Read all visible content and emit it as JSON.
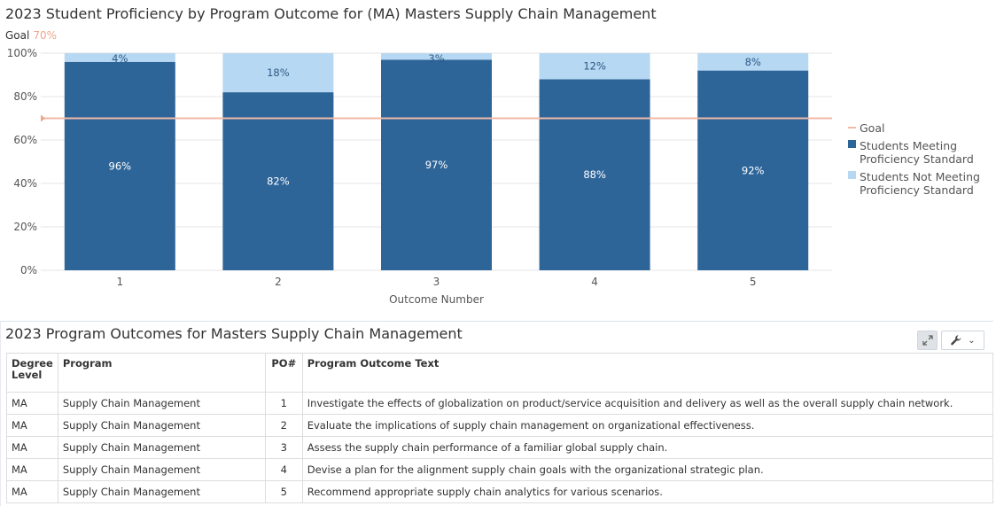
{
  "chart_data": {
    "type": "bar",
    "stacked": true,
    "title": "2023 Student Proficiency by Program Outcome for (MA) Masters Supply Chain Management",
    "goal": {
      "label": "Goal",
      "value_label": "70%",
      "value": 70,
      "color": "#f0b9a8"
    },
    "categories": [
      "1",
      "2",
      "3",
      "4",
      "5"
    ],
    "series": [
      {
        "name": "Students Meeting Proficiency Standard",
        "values": [
          96,
          82,
          97,
          88,
          92
        ],
        "labels": [
          "96%",
          "82%",
          "97%",
          "88%",
          "92%"
        ],
        "color": "#2e6599"
      },
      {
        "name": "Students Not Meeting Proficiency Standard",
        "values": [
          4,
          18,
          3,
          12,
          8
        ],
        "labels": [
          "4%",
          "18%",
          "3%",
          "12%",
          "8%"
        ],
        "color": "#b6d8f2"
      }
    ],
    "xlabel": "Outcome Number",
    "ylabel": "",
    "ylim": [
      0,
      100
    ],
    "yticks": [
      "0%",
      "20%",
      "40%",
      "60%",
      "80%",
      "100%"
    ],
    "legend": {
      "position": "right",
      "entries": [
        {
          "lines": [
            "Goal"
          ],
          "kind": "line",
          "color": "#f0b9a8"
        },
        {
          "lines": [
            "Students Meeting",
            "Proficiency Standard"
          ],
          "kind": "box",
          "color": "#2e6599"
        },
        {
          "lines": [
            "Students Not Meeting",
            "Proficiency Standard"
          ],
          "kind": "box",
          "color": "#b6d8f2"
        }
      ]
    },
    "grid": true
  },
  "table": {
    "title": "2023 Program Outcomes for Masters Supply Chain Management",
    "headers": {
      "degree": "Degree Level",
      "program": "Program",
      "po": "PO#",
      "text": "Program Outcome Text"
    },
    "rows": [
      {
        "degree": "MA",
        "program": "Supply Chain Management",
        "po": "1",
        "text": "Investigate the effects of globalization on product/service acquisition and delivery as well as the overall supply chain network."
      },
      {
        "degree": "MA",
        "program": "Supply Chain Management",
        "po": "2",
        "text": "Evaluate the implications of supply chain management on organizational effectiveness."
      },
      {
        "degree": "MA",
        "program": "Supply Chain Management",
        "po": "3",
        "text": "Assess the supply chain performance of a familiar global supply chain."
      },
      {
        "degree": "MA",
        "program": "Supply Chain Management",
        "po": "4",
        "text": "Devise a plan for the alignment supply chain goals with the organizational strategic plan."
      },
      {
        "degree": "MA",
        "program": "Supply Chain Management",
        "po": "5",
        "text": "Recommend appropriate supply chain analytics for various scenarios."
      }
    ],
    "toolbar": {
      "expand_icon": "expand-icon",
      "wrench_icon": "wrench-icon",
      "dropdown_icon": "chevron-down-icon"
    }
  }
}
